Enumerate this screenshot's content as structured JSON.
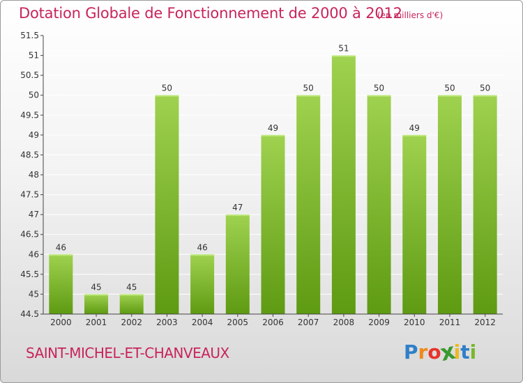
{
  "header": {
    "title": "Dotation Globale de Fonctionnement de 2000 à 2012",
    "unit": "(en milliers d'€)"
  },
  "footer": {
    "commune": "SAINT-MICHEL-ET-CHANVEAUX",
    "logo_letters": [
      "P",
      "r",
      "o",
      "x",
      "i",
      "t",
      "i"
    ],
    "logo_colors": [
      "#2f7fc8",
      "#f08a1c",
      "#e8332a",
      "#3a9a2f",
      "#f0b81c",
      "#2f7fc8",
      "#7ab82a"
    ]
  },
  "colors": {
    "bar_light": "#9fd24f",
    "bar_dark": "#5e9a12",
    "text": "#c8245a",
    "axis": "#444444",
    "grid": "#ffffff"
  },
  "chart_data": {
    "type": "bar",
    "title": "Dotation Globale de Fonctionnement de 2000 à 2012",
    "subtitle": "(en milliers d'€)",
    "categories": [
      "2000",
      "2001",
      "2002",
      "2003",
      "2004",
      "2005",
      "2006",
      "2007",
      "2008",
      "2009",
      "2010",
      "2011",
      "2012"
    ],
    "values": [
      46,
      45,
      45,
      50,
      46,
      47,
      49,
      50,
      51,
      50,
      49,
      50,
      50
    ],
    "data_labels": [
      "46",
      "45",
      "45",
      "50",
      "46",
      "47",
      "49",
      "50",
      "51",
      "50",
      "49",
      "50",
      "50"
    ],
    "ylim": [
      44.5,
      51.5
    ],
    "yticks": [
      44.5,
      45,
      45.5,
      46,
      46.5,
      47,
      47.5,
      48,
      48.5,
      49,
      49.5,
      50,
      50.5,
      51,
      51.5
    ],
    "ytick_labels": [
      "44.5",
      "45",
      "45.5",
      "46",
      "46.5",
      "47",
      "47.5",
      "48",
      "48.5",
      "49",
      "49.5",
      "50",
      "50.5",
      "51",
      "51.5"
    ],
    "grid": true
  }
}
